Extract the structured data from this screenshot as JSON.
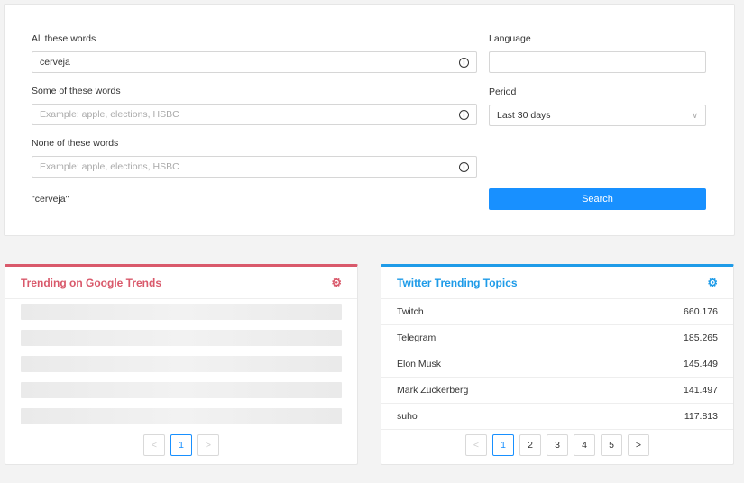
{
  "search_form": {
    "all_words": {
      "label": "All these words",
      "value": "cerveja"
    },
    "some_words": {
      "label": "Some of these words",
      "placeholder": "Example: apple, elections, HSBC"
    },
    "none_words": {
      "label": "None of these words",
      "placeholder": "Example: apple, elections, HSBC"
    },
    "language": {
      "label": "Language",
      "value": ""
    },
    "period": {
      "label": "Period",
      "value": "Last 30 days"
    },
    "query_preview": "\"cerveja\"",
    "search_label": "Search",
    "info_icon": "ⓘ"
  },
  "google_trends": {
    "title": "Trending on Google Trends",
    "accent": "#d9596b",
    "pages": [
      "1"
    ],
    "prev": "<",
    "next": ">"
  },
  "twitter_trends": {
    "title": "Twitter Trending Topics",
    "accent": "#1e9be8",
    "items": [
      {
        "name": "Twitch",
        "count": "660.176"
      },
      {
        "name": "Telegram",
        "count": "185.265"
      },
      {
        "name": "Elon Musk",
        "count": "145.449"
      },
      {
        "name": "Mark Zuckerberg",
        "count": "141.497"
      },
      {
        "name": "suho",
        "count": "117.813"
      }
    ],
    "pages": [
      "1",
      "2",
      "3",
      "4",
      "5"
    ],
    "prev": "<",
    "next": ">"
  }
}
